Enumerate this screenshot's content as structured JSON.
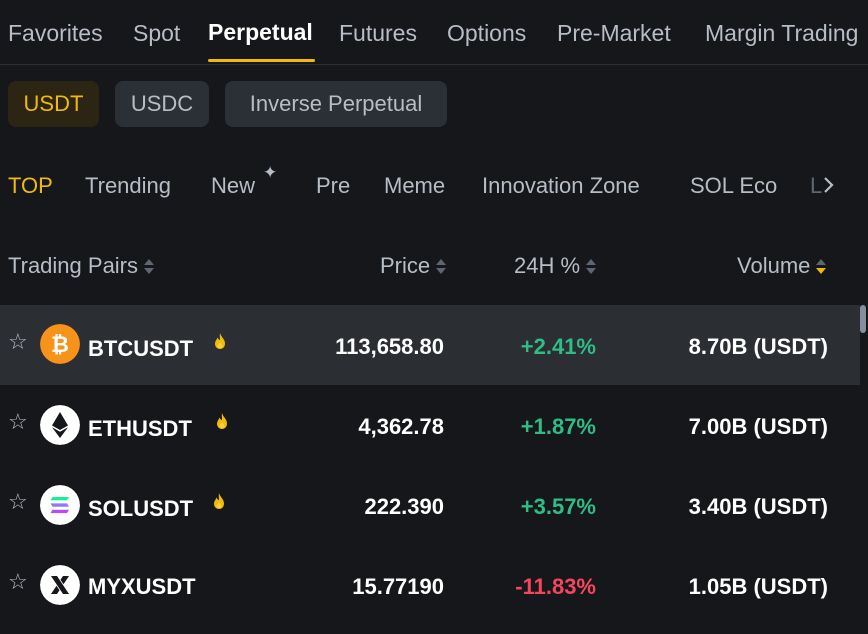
{
  "top_tabs": [
    "Favorites",
    "Spot",
    "Perpetual",
    "Futures",
    "Options",
    "Pre-Market",
    "Margin Trading"
  ],
  "quote_pills": [
    "USDT",
    "USDC",
    "Inverse Perpetual"
  ],
  "categories": [
    "TOP",
    "Trending",
    "New",
    "Pre",
    "Meme",
    "Innovation Zone",
    "SOL Eco",
    "L"
  ],
  "headers": {
    "pair": "Trading Pairs",
    "price": "Price",
    "change": "24H %",
    "volume": "Volume"
  },
  "rows": [
    {
      "pair": "BTCUSDT",
      "price": "113,658.80",
      "change": "+2.41%",
      "volume": "8.70B (USDT)",
      "hot": true
    },
    {
      "pair": "ETHUSDT",
      "price": "4,362.78",
      "change": "+1.87%",
      "volume": "7.00B (USDT)",
      "hot": true
    },
    {
      "pair": "SOLUSDT",
      "price": "222.390",
      "change": "+3.57%",
      "volume": "3.40B (USDT)",
      "hot": true
    },
    {
      "pair": "MYXUSDT",
      "price": "15.77190",
      "change": "-11.83%",
      "volume": "1.05B (USDT)",
      "hot": false
    }
  ],
  "colors": {
    "accent": "#f0b90b",
    "up": "#2ebd85",
    "down": "#f6465d",
    "background": "#16171a"
  },
  "icons": {
    "favorite": "star-outline-icon",
    "hot": "fire-icon",
    "new": "sparkle-icon",
    "more": "chevron-right-icon",
    "sort": "sort-arrows-icon"
  }
}
